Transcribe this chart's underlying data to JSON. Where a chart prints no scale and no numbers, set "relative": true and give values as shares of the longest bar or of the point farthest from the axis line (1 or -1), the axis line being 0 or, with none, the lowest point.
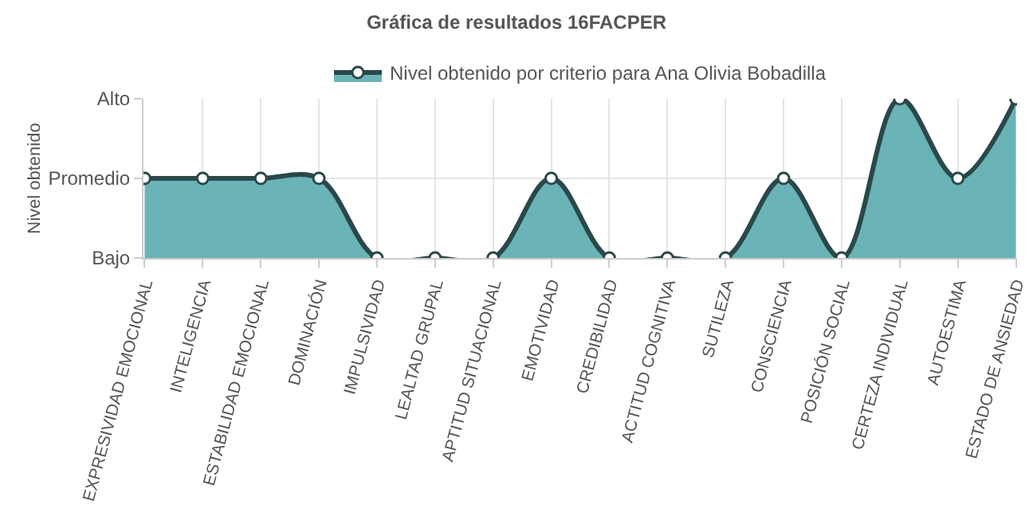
{
  "chart_data": {
    "type": "area",
    "title": "Gráfica de resultados 16FACPER",
    "ylabel": "Nivel obtenido",
    "categories": [
      "EXPRESIVIDAD EMOCIONAL",
      "INTELIGENCIA",
      "ESTABILIDAD EMOCIONAL",
      "DOMINACIÓN",
      "IMPULSIVIDAD",
      "LEALTAD GRUPAL",
      "APTITUD SITUACIONAL",
      "EMOTIVIDAD",
      "CREDIBILIDAD",
      "ACTITUD COGNITIVA",
      "SUTILEZA",
      "CONSCIENCIA",
      "POSICIÓN SOCIAL",
      "CERTEZA INDIVIDUAL",
      "AUTOESTIMA",
      "ESTADO DE ANSIEDAD"
    ],
    "y_categories": [
      "Alto",
      "Promedio",
      "Bajo"
    ],
    "relative": true,
    "series": [
      {
        "name": "Nivel obtenido por criterio para Ana Olivia Bobadilla",
        "color": "#6ab3b6",
        "values": [
          0.5,
          0.5,
          0.5,
          0.5,
          0,
          0,
          0,
          0.5,
          0,
          0,
          0,
          0.5,
          0,
          1,
          0.5,
          1
        ]
      }
    ],
    "grid": true,
    "legend": "top",
    "marker": "circle"
  }
}
